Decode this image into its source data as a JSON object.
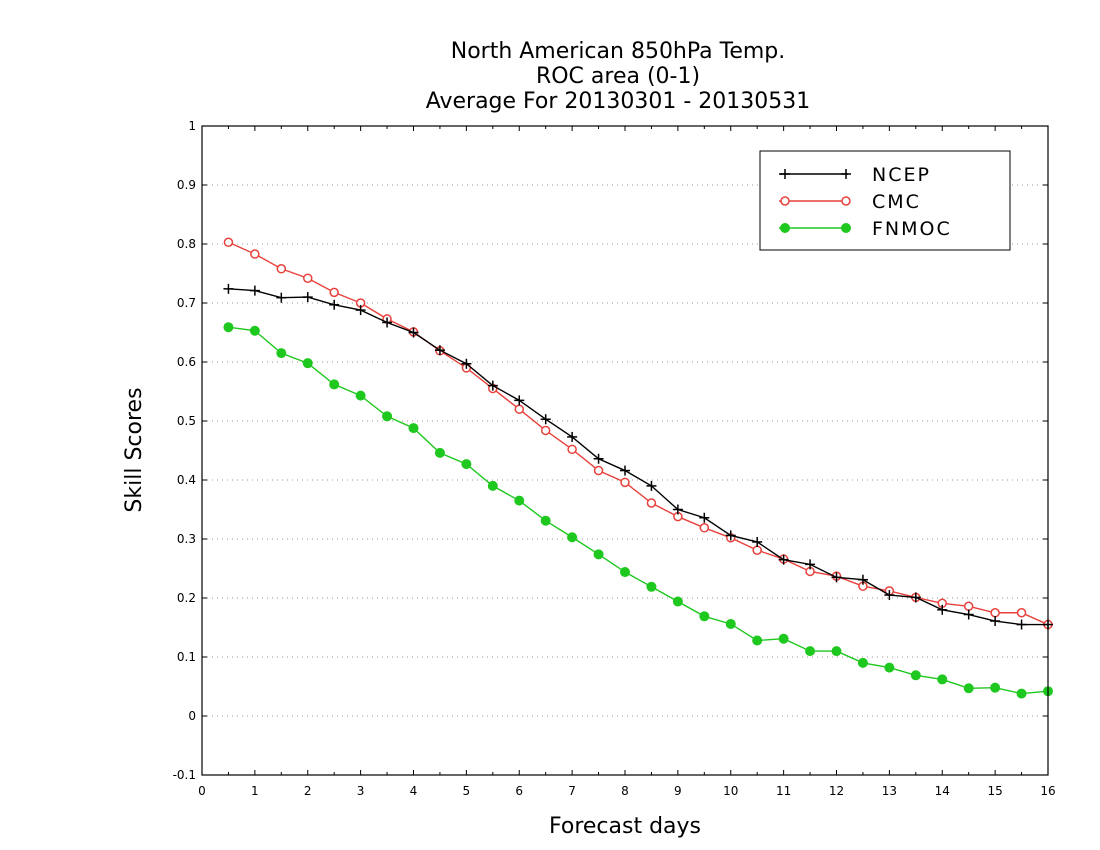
{
  "chart_data": {
    "type": "line",
    "title": [
      "North American 850hPa Temp.",
      "ROC area (0-1)",
      "Average For 20130301 - 20130531"
    ],
    "xlabel": "Forecast days",
    "ylabel": "Skill Scores",
    "xlim": [
      0,
      16
    ],
    "ylim": [
      -0.1,
      1
    ],
    "xticks": [
      0,
      1,
      2,
      3,
      4,
      5,
      6,
      7,
      8,
      9,
      10,
      11,
      12,
      13,
      14,
      15,
      16
    ],
    "yticks": [
      -0.1,
      0,
      0.1,
      0.2,
      0.3,
      0.4,
      0.5,
      0.6,
      0.7,
      0.8,
      0.9,
      1
    ],
    "ytick_labels": [
      "-0.1",
      "0",
      "0.1",
      "0.2",
      "0.3",
      "0.4",
      "0.5",
      "0.6",
      "0.7",
      "0.8",
      "0.9",
      "1"
    ],
    "grid": "horizontal dotted",
    "legend_position": "top-right",
    "x": [
      0.5,
      1,
      1.5,
      2,
      2.5,
      3,
      3.5,
      4,
      4.5,
      5,
      5.5,
      6,
      6.5,
      7,
      7.5,
      8,
      8.5,
      9,
      9.5,
      10,
      10.5,
      11,
      11.5,
      12,
      12.5,
      13,
      13.5,
      14,
      14.5,
      15,
      15.5,
      16
    ],
    "series": [
      {
        "name": "NCEP",
        "color": "#000000",
        "marker": "plus",
        "values": [
          0.724,
          0.721,
          0.709,
          0.71,
          0.697,
          0.688,
          0.667,
          0.65,
          0.62,
          0.597,
          0.56,
          0.535,
          0.503,
          0.473,
          0.436,
          0.416,
          0.39,
          0.35,
          0.336,
          0.306,
          0.295,
          0.265,
          0.257,
          0.235,
          0.231,
          0.205,
          0.201,
          0.18,
          0.172,
          0.161,
          0.155,
          0.155
        ]
      },
      {
        "name": "CMC",
        "color": "#e8413c",
        "marker": "open-circle",
        "values": [
          0.803,
          0.783,
          0.758,
          0.742,
          0.718,
          0.7,
          0.673,
          0.651,
          0.619,
          0.59,
          0.555,
          0.52,
          0.484,
          0.452,
          0.416,
          0.396,
          0.361,
          0.338,
          0.319,
          0.302,
          0.281,
          0.266,
          0.245,
          0.237,
          0.22,
          0.212,
          0.201,
          0.191,
          0.186,
          0.175,
          0.175,
          0.155
        ]
      },
      {
        "name": "FNMOC",
        "color": "#1ec81e",
        "marker": "filled-circle",
        "values": [
          0.659,
          0.653,
          0.615,
          0.598,
          0.562,
          0.543,
          0.508,
          0.488,
          0.446,
          0.427,
          0.39,
          0.365,
          0.331,
          0.303,
          0.274,
          0.244,
          0.219,
          0.194,
          0.169,
          0.156,
          0.128,
          0.131,
          0.11,
          0.11,
          0.09,
          0.082,
          0.069,
          0.062,
          0.047,
          0.048,
          0.038,
          0.042
        ]
      }
    ]
  }
}
